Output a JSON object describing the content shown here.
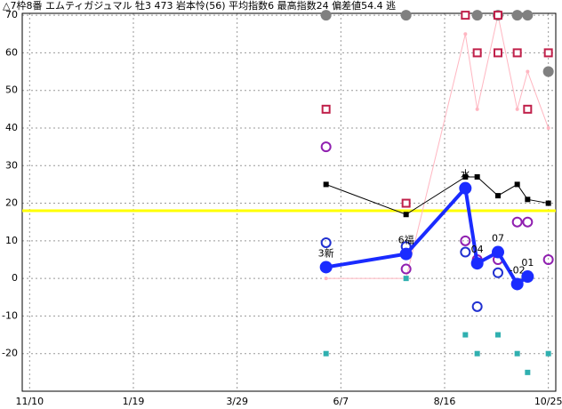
{
  "chart_data": {
    "type": "line",
    "title": "△7枠8番 エムティガジュマル 牡3 473 岩本怜(56) 平均指数6 最高指数24 偏差値54.4 逃",
    "xlim": [
      -5,
      355
    ],
    "ylim": [
      -30,
      70.5
    ],
    "xticks": [
      {
        "value": 0,
        "label": "11/10"
      },
      {
        "value": 70,
        "label": "1/19"
      },
      {
        "value": 140,
        "label": "3/29"
      },
      {
        "value": 210,
        "label": "6/7"
      },
      {
        "value": 280,
        "label": "8/16"
      },
      {
        "value": 350,
        "label": "10/25"
      }
    ],
    "yticks": [
      70,
      60,
      50,
      40,
      30,
      20,
      10,
      0,
      -10,
      -20
    ],
    "grid": true,
    "reference_line": {
      "value": 18,
      "color": "#ffff00"
    },
    "series": [
      {
        "color": "#ffb6c1",
        "line_width": 1,
        "marker": "dot",
        "x": [
          200,
          254,
          294,
          302,
          316,
          329,
          336,
          350
        ],
        "values": [
          0,
          0,
          65,
          45,
          70,
          45,
          55,
          40
        ]
      },
      {
        "color": "#000000",
        "line_width": 1,
        "marker": "square-filled",
        "x": [
          200,
          254,
          294,
          302,
          316,
          329,
          336,
          350
        ],
        "values": [
          25,
          17,
          27,
          27,
          22,
          25,
          21,
          20
        ]
      },
      {
        "color": "#808080",
        "line_width": 0,
        "marker": "circle-filled",
        "x": [
          200,
          254,
          302,
          316,
          329,
          336,
          350
        ],
        "values": [
          70,
          70,
          70,
          70,
          70,
          70,
          55
        ]
      },
      {
        "color": "#c0204a",
        "line_width": 0,
        "marker": "square-open",
        "x": [
          200,
          254,
          294,
          302,
          316,
          316,
          329,
          336,
          350
        ],
        "values": [
          45,
          20,
          70,
          60,
          70,
          60,
          60,
          45,
          60
        ]
      },
      {
        "color": "#9020b0",
        "line_width": 0,
        "marker": "circle-open",
        "x": [
          200,
          254,
          294,
          302,
          316,
          329,
          336,
          350
        ],
        "values": [
          35,
          2.5,
          10,
          5,
          5,
          15,
          15,
          5
        ]
      },
      {
        "color": "#2030d0",
        "line_width": 0,
        "marker": "circle-open",
        "x": [
          200,
          254,
          294,
          302,
          316
        ],
        "values": [
          9.5,
          8.5,
          7,
          -7.5,
          1.5
        ]
      },
      {
        "color": "#30b0b0",
        "line_width": 0,
        "marker": "square-filled",
        "x": [
          200,
          254,
          294,
          302,
          316,
          329,
          336,
          350
        ],
        "values": [
          -20,
          0,
          -15,
          -20,
          -15,
          -20,
          -25,
          -20
        ]
      },
      {
        "color": "#1a2bff",
        "line_width": 4,
        "marker": "circle-big",
        "x": [
          200,
          254,
          294,
          302,
          316,
          329,
          336
        ],
        "values": [
          3,
          6.5,
          24,
          4,
          7,
          -1.5,
          0.5
        ],
        "point_labels": [
          "3新",
          "6福",
          "水",
          "04",
          "07",
          "-02",
          "01"
        ]
      }
    ]
  }
}
